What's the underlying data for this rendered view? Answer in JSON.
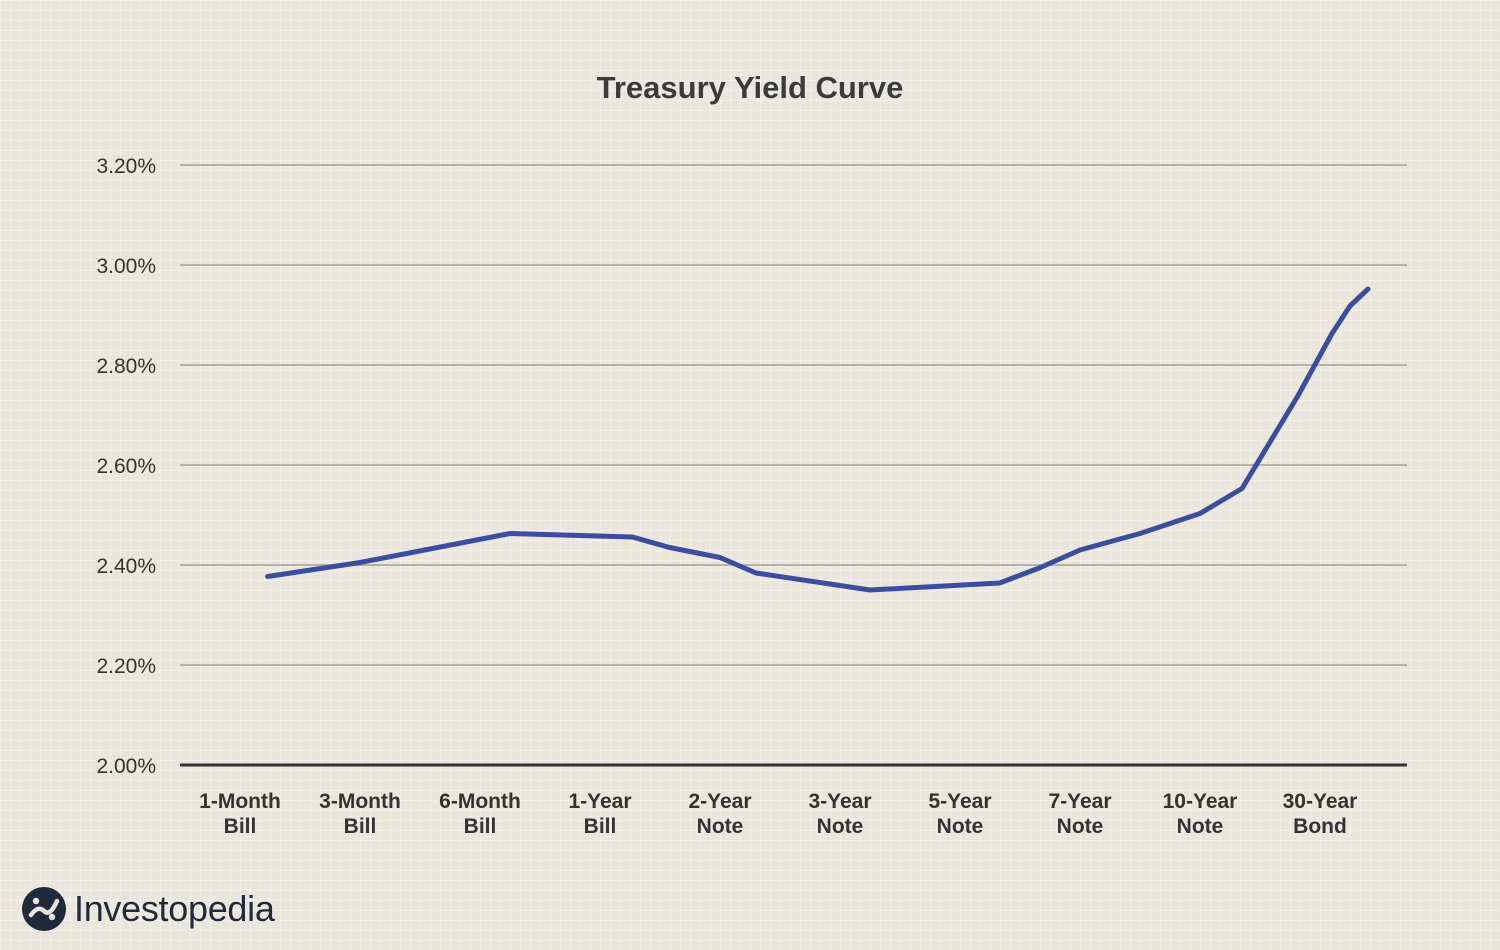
{
  "chart_data": {
    "type": "line",
    "title": "Treasury Yield Curve",
    "xlabel": "",
    "ylabel": "",
    "categories": [
      [
        "1-Month",
        "Bill"
      ],
      [
        "3-Month",
        "Bill"
      ],
      [
        "6-Month",
        "Bill"
      ],
      [
        "1-Year",
        "Bill"
      ],
      [
        "2-Year",
        "Note"
      ],
      [
        "3-Year",
        "Note"
      ],
      [
        "5-Year",
        "Note"
      ],
      [
        "7-Year",
        "Note"
      ],
      [
        "10-Year",
        "Note"
      ],
      [
        "30-Year",
        "Bond"
      ]
    ],
    "y_ticks": [
      "2.00%",
      "2.20%",
      "2.40%",
      "2.60%",
      "2.80%",
      "3.00%",
      "3.20%"
    ],
    "ylim": [
      2.0,
      3.2
    ],
    "grid": true,
    "series": [
      {
        "color": "#3a4ea0",
        "points": [
          {
            "x": 0.23,
            "y": 2.377
          },
          {
            "x": 1.0,
            "y": 2.405
          },
          {
            "x": 2.25,
            "y": 2.463
          },
          {
            "x": 3.27,
            "y": 2.456
          },
          {
            "x": 3.58,
            "y": 2.435
          },
          {
            "x": 4.0,
            "y": 2.415
          },
          {
            "x": 4.3,
            "y": 2.384
          },
          {
            "x": 5.25,
            "y": 2.35
          },
          {
            "x": 6.33,
            "y": 2.364
          },
          {
            "x": 6.67,
            "y": 2.395
          },
          {
            "x": 7.0,
            "y": 2.43
          },
          {
            "x": 7.5,
            "y": 2.463
          },
          {
            "x": 8.0,
            "y": 2.503
          },
          {
            "x": 8.35,
            "y": 2.553
          },
          {
            "x": 8.82,
            "y": 2.74
          },
          {
            "x": 9.1,
            "y": 2.863
          },
          {
            "x": 9.25,
            "y": 2.918
          },
          {
            "x": 9.4,
            "y": 2.952
          }
        ]
      }
    ]
  },
  "branding": {
    "logo_text": "Investopedia",
    "logo_icon": "investopedia-logo-icon"
  }
}
